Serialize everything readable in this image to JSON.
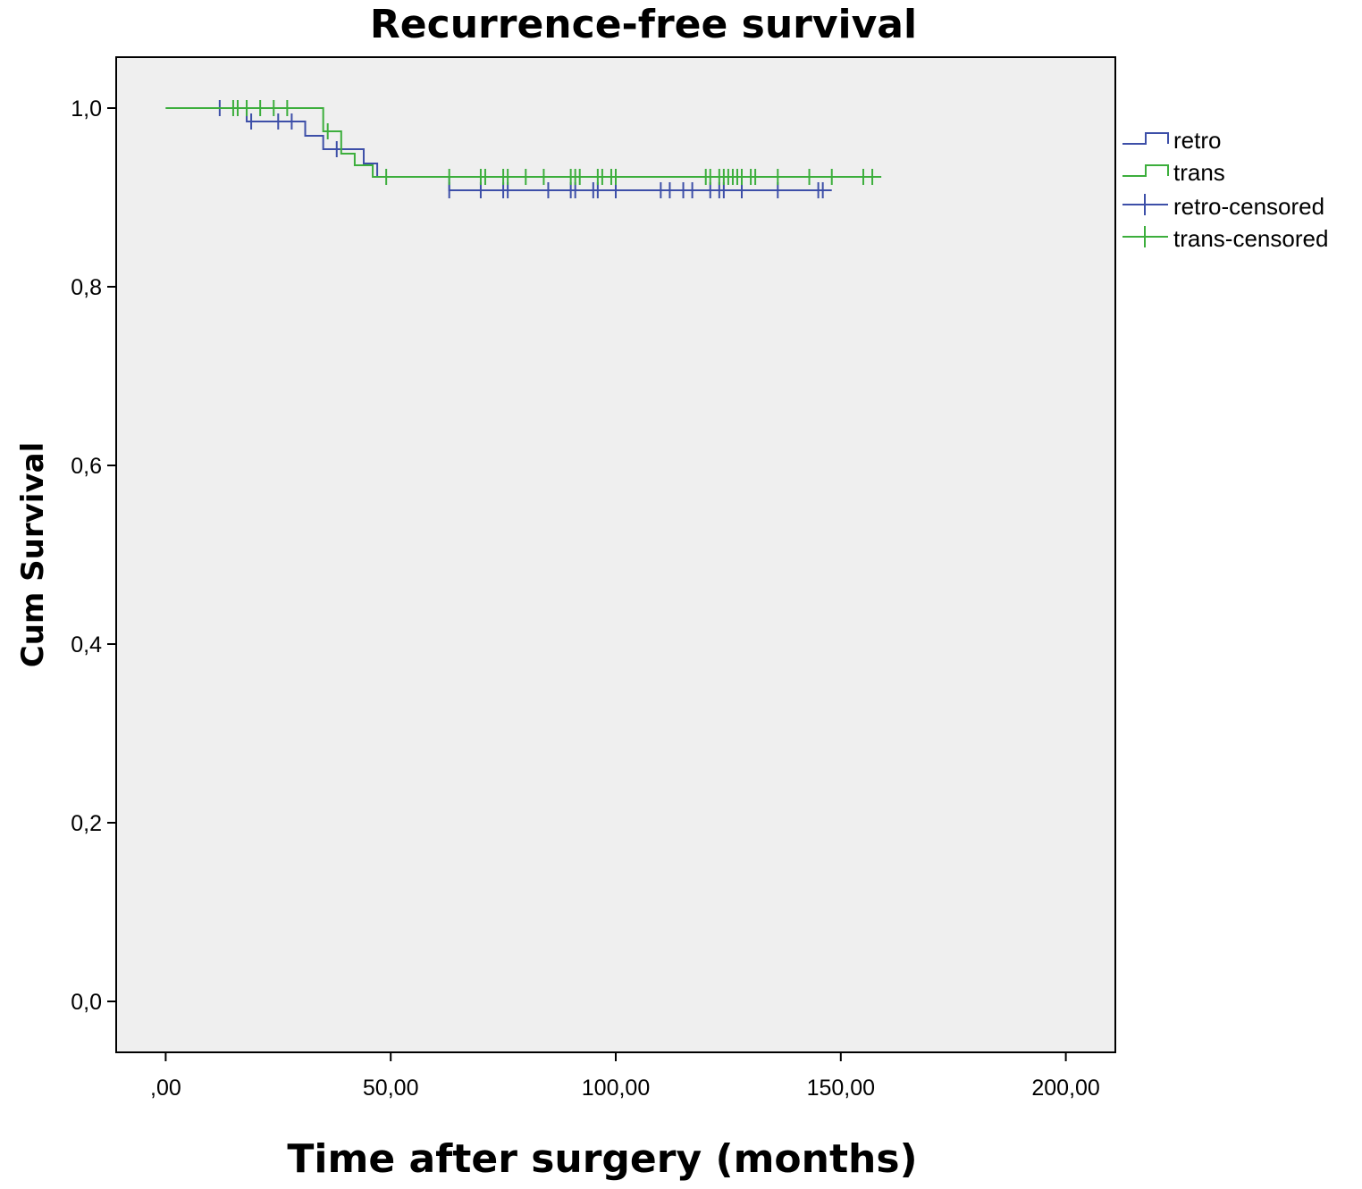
{
  "chart_data": {
    "type": "line",
    "subtype": "kaplan-meier",
    "title": "Recurrence-free survival",
    "xlabel": "Time after surgery (months)",
    "ylabel": "Cum Survival",
    "xlim": [
      -11,
      211
    ],
    "ylim": [
      -0.057,
      1.057
    ],
    "x_ticks": [
      0,
      50,
      100,
      150,
      200
    ],
    "x_tick_labels": [
      ",00",
      "50,00",
      "100,00",
      "150,00",
      "200,00"
    ],
    "y_ticks": [
      0,
      0.2,
      0.4,
      0.6,
      0.8,
      1.0
    ],
    "y_tick_labels": [
      "0,0",
      "0,2",
      "0,4",
      "0,6",
      "0,8",
      "1,0"
    ],
    "grid": false,
    "legend_position": "right",
    "plot_background": "#efefef",
    "series": [
      {
        "name": "retro",
        "color": "#3d4fa8",
        "steps": [
          [
            0,
            1.0
          ],
          [
            18,
            0.985
          ],
          [
            31,
            0.969
          ],
          [
            35,
            0.954
          ],
          [
            44,
            0.938
          ],
          [
            47,
            0.923
          ],
          [
            63,
            0.908
          ],
          [
            148,
            0.908
          ]
        ],
        "censored": [
          [
            12,
            1.0
          ],
          [
            19,
            0.985
          ],
          [
            25,
            0.985
          ],
          [
            28,
            0.985
          ],
          [
            38,
            0.954
          ],
          [
            63,
            0.908
          ],
          [
            70,
            0.908
          ],
          [
            75,
            0.908
          ],
          [
            76,
            0.908
          ],
          [
            85,
            0.908
          ],
          [
            90,
            0.908
          ],
          [
            91,
            0.908
          ],
          [
            95,
            0.908
          ],
          [
            96,
            0.908
          ],
          [
            100,
            0.908
          ],
          [
            110,
            0.908
          ],
          [
            112,
            0.908
          ],
          [
            115,
            0.908
          ],
          [
            117,
            0.908
          ],
          [
            121,
            0.908
          ],
          [
            123,
            0.908
          ],
          [
            124,
            0.908
          ],
          [
            128,
            0.908
          ],
          [
            136,
            0.908
          ],
          [
            145,
            0.908
          ],
          [
            146,
            0.908
          ]
        ]
      },
      {
        "name": "trans",
        "color": "#3cae3c",
        "steps": [
          [
            0,
            1.0
          ],
          [
            35,
            0.974
          ],
          [
            39,
            0.949
          ],
          [
            42,
            0.936
          ],
          [
            46,
            0.923
          ],
          [
            159,
            0.923
          ]
        ],
        "censored": [
          [
            15,
            1.0
          ],
          [
            16,
            1.0
          ],
          [
            18,
            1.0
          ],
          [
            21,
            1.0
          ],
          [
            24,
            1.0
          ],
          [
            27,
            1.0
          ],
          [
            36,
            0.974
          ],
          [
            49,
            0.923
          ],
          [
            63,
            0.923
          ],
          [
            70,
            0.923
          ],
          [
            71,
            0.923
          ],
          [
            75,
            0.923
          ],
          [
            76,
            0.923
          ],
          [
            80,
            0.923
          ],
          [
            84,
            0.923
          ],
          [
            90,
            0.923
          ],
          [
            91,
            0.923
          ],
          [
            92,
            0.923
          ],
          [
            96,
            0.923
          ],
          [
            97,
            0.923
          ],
          [
            99,
            0.923
          ],
          [
            100,
            0.923
          ],
          [
            120,
            0.923
          ],
          [
            121,
            0.923
          ],
          [
            123,
            0.923
          ],
          [
            124,
            0.923
          ],
          [
            125,
            0.923
          ],
          [
            126,
            0.923
          ],
          [
            127,
            0.923
          ],
          [
            128,
            0.923
          ],
          [
            130,
            0.923
          ],
          [
            131,
            0.923
          ],
          [
            136,
            0.923
          ],
          [
            143,
            0.923
          ],
          [
            148,
            0.923
          ],
          [
            155,
            0.923
          ],
          [
            157,
            0.923
          ]
        ]
      }
    ],
    "legend": [
      {
        "label": "retro",
        "style": "step",
        "color": "#3d4fa8"
      },
      {
        "label": "trans",
        "style": "step",
        "color": "#3cae3c"
      },
      {
        "label": "retro-censored",
        "style": "cross",
        "color": "#3d4fa8"
      },
      {
        "label": "trans-censored",
        "style": "cross",
        "color": "#3cae3c"
      }
    ]
  }
}
